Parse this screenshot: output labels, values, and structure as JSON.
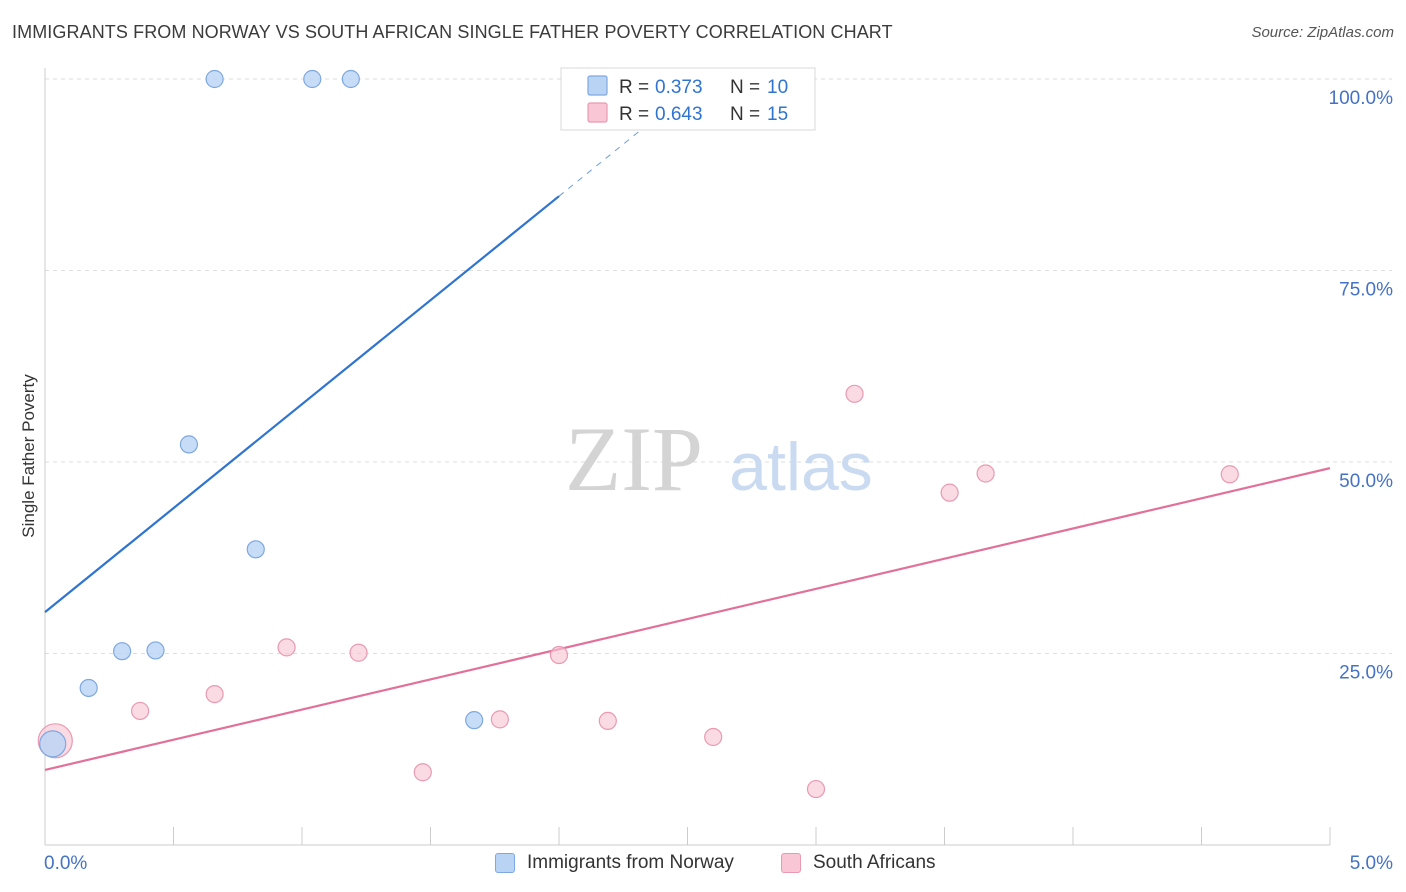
{
  "header": {
    "title": "IMMIGRANTS FROM NORWAY VS SOUTH AFRICAN SINGLE FATHER POVERTY CORRELATION CHART",
    "source": "Source: ZipAtlas.com"
  },
  "watermark": {
    "zip": "ZIP",
    "atlas": "atlas"
  },
  "colors": {
    "blue_fill": "#b9d3f5",
    "blue_stroke": "#7ea8e0",
    "blue_line": "#2f74d0",
    "pink_fill": "#f8c6d4",
    "pink_stroke": "#e99ab2",
    "pink_line": "#e2719a",
    "tick_text": "#4472c4",
    "grid": "#dddddd"
  },
  "legend_top": [
    {
      "r_label": "R =",
      "r_value": "0.373",
      "n_label": "N =",
      "n_value": "10"
    },
    {
      "r_label": "R =",
      "r_value": "0.643",
      "n_label": "N =",
      "n_value": "15"
    }
  ],
  "chart_data": {
    "type": "scatter",
    "xlabel": "",
    "ylabel": "Single Father Poverty",
    "xlim": [
      0,
      5
    ],
    "ylim": [
      0,
      100
    ],
    "x_tick_labels": [
      "0.0%",
      "5.0%"
    ],
    "y_tick_labels": [
      "25.0%",
      "50.0%",
      "75.0%",
      "100.0%"
    ],
    "y_tick_values": [
      25,
      50,
      75,
      100
    ],
    "grid": true,
    "legend_position": "top-center",
    "series": [
      {
        "name": "Immigrants from Norway",
        "color": "blue",
        "points": [
          {
            "x": 0.03,
            "y": 13.2,
            "big": true
          },
          {
            "x": 0.17,
            "y": 20.5
          },
          {
            "x": 0.3,
            "y": 25.3
          },
          {
            "x": 0.43,
            "y": 25.4
          },
          {
            "x": 0.56,
            "y": 52.3
          },
          {
            "x": 0.66,
            "y": 100
          },
          {
            "x": 0.82,
            "y": 38.6
          },
          {
            "x": 1.04,
            "y": 100
          },
          {
            "x": 1.19,
            "y": 100
          },
          {
            "x": 1.67,
            "y": 16.3
          }
        ],
        "trend": {
          "x0": 0,
          "y0": 30.4,
          "x1": 2.0,
          "y1": 84.7,
          "dashed_to_x": 2.35,
          "dashed_to_y": 94.2
        }
      },
      {
        "name": "South Africans",
        "color": "pink",
        "points": [
          {
            "x": 0.04,
            "y": 13.6,
            "big": true
          },
          {
            "x": 0.37,
            "y": 17.5
          },
          {
            "x": 0.66,
            "y": 19.7
          },
          {
            "x": 0.94,
            "y": 25.8
          },
          {
            "x": 1.22,
            "y": 25.1
          },
          {
            "x": 1.47,
            "y": 9.5
          },
          {
            "x": 1.77,
            "y": 16.4
          },
          {
            "x": 2.0,
            "y": 24.8
          },
          {
            "x": 2.19,
            "y": 16.2
          },
          {
            "x": 2.6,
            "y": 14.1
          },
          {
            "x": 3.0,
            "y": 7.3
          },
          {
            "x": 3.15,
            "y": 58.9
          },
          {
            "x": 3.52,
            "y": 46.0
          },
          {
            "x": 3.66,
            "y": 48.5
          },
          {
            "x": 4.61,
            "y": 48.4
          }
        ],
        "trend": {
          "x0": 0,
          "y0": 9.8,
          "x1": 5.0,
          "y1": 49.2
        }
      }
    ]
  }
}
